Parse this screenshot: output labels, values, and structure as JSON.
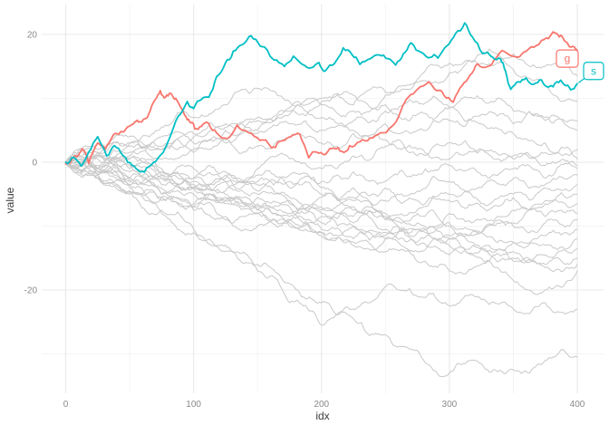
{
  "chart_data": {
    "type": "line",
    "title": "",
    "xlabel": "idx",
    "ylabel": "value",
    "x_ticks": [
      0,
      100,
      200,
      300,
      400
    ],
    "y_ticks": [
      20,
      0,
      -20
    ],
    "x_minor_gridlines": [
      50,
      150,
      250,
      350
    ],
    "y_minor_gridlines": [
      10,
      -10,
      -30
    ],
    "xlim": [
      0,
      400
    ],
    "ylim": [
      -33,
      22
    ],
    "grid": true,
    "legend_position": "none",
    "annotation_style": "direct series labels in rounded boxes at right edge",
    "colors": {
      "series_g": "#F8766D",
      "series_s": "#00BFC4",
      "background_lines": "#C9C9C9",
      "grid_major": "#E8E8E8",
      "grid_minor": "#F4F4F4",
      "tick_text": "#8a8a8a",
      "axis_title_text": "#3d3d3d",
      "panel_background": "#FFFFFF"
    },
    "series": [
      {
        "name": "g",
        "color": "#F8766D",
        "points": [
          [
            0,
            -0.3
          ],
          [
            7,
            1
          ],
          [
            13,
            2.1
          ],
          [
            18,
            -0.2
          ],
          [
            25,
            3
          ],
          [
            31,
            2
          ],
          [
            37,
            4.2
          ],
          [
            43,
            4.8
          ],
          [
            47,
            5.2
          ],
          [
            53,
            6
          ],
          [
            57,
            6.3
          ],
          [
            62,
            6.8
          ],
          [
            66,
            8
          ],
          [
            70,
            9.8
          ],
          [
            74,
            11.2
          ],
          [
            78,
            10.2
          ],
          [
            82,
            10.8
          ],
          [
            86,
            10
          ],
          [
            93,
            7.4
          ],
          [
            97,
            6.3
          ],
          [
            101,
            5.2
          ],
          [
            106,
            5.6
          ],
          [
            112,
            6
          ],
          [
            118,
            4.6
          ],
          [
            126,
            3.7
          ],
          [
            134,
            5.8
          ],
          [
            143,
            4.6
          ],
          [
            152,
            3.4
          ],
          [
            158,
            3
          ],
          [
            164,
            2.3
          ],
          [
            170,
            3.4
          ],
          [
            176,
            4
          ],
          [
            183,
            4.4
          ],
          [
            190,
            0.7
          ],
          [
            196,
            1.6
          ],
          [
            203,
            1.2
          ],
          [
            210,
            2.2
          ],
          [
            216,
            1.7
          ],
          [
            222,
            2.6
          ],
          [
            230,
            3.2
          ],
          [
            238,
            3.8
          ],
          [
            246,
            4.6
          ],
          [
            255,
            5.6
          ],
          [
            262,
            8
          ],
          [
            268,
            10.2
          ],
          [
            275,
            11.4
          ],
          [
            284,
            12.6
          ],
          [
            290,
            11.2
          ],
          [
            296,
            10.4
          ],
          [
            303,
            9.4
          ],
          [
            310,
            12
          ],
          [
            316,
            13.6
          ],
          [
            322,
            15.4
          ],
          [
            330,
            15
          ],
          [
            336,
            16.2
          ],
          [
            343,
            17.3
          ],
          [
            352,
            16.5
          ],
          [
            358,
            17.2
          ],
          [
            366,
            18
          ],
          [
            374,
            19.2
          ],
          [
            381,
            20.4
          ],
          [
            386,
            19.6
          ],
          [
            390,
            19
          ],
          [
            395,
            18
          ],
          [
            400,
            17.5
          ]
        ]
      },
      {
        "name": "s",
        "color": "#00BFC4",
        "points": [
          [
            0,
            0
          ],
          [
            6,
            0.8
          ],
          [
            12,
            -0.6
          ],
          [
            18,
            1.6
          ],
          [
            25,
            4
          ],
          [
            32,
            1
          ],
          [
            38,
            2.6
          ],
          [
            45,
            1
          ],
          [
            52,
            -0.5
          ],
          [
            58,
            -1.5
          ],
          [
            65,
            -0.7
          ],
          [
            72,
            0.6
          ],
          [
            80,
            3.2
          ],
          [
            88,
            7.2
          ],
          [
            95,
            9.5
          ],
          [
            100,
            8.4
          ],
          [
            106,
            9.8
          ],
          [
            112,
            10.2
          ],
          [
            118,
            13.4
          ],
          [
            125,
            15.6
          ],
          [
            131,
            17.4
          ],
          [
            138,
            18.4
          ],
          [
            145,
            19.8
          ],
          [
            152,
            18.2
          ],
          [
            158,
            17.4
          ],
          [
            165,
            16
          ],
          [
            171,
            15
          ],
          [
            178,
            16.6
          ],
          [
            185,
            15.3
          ],
          [
            192,
            14.8
          ],
          [
            198,
            15.6
          ],
          [
            203,
            14.3
          ],
          [
            210,
            15.4
          ],
          [
            217,
            17.9
          ],
          [
            224,
            16.8
          ],
          [
            230,
            15.3
          ],
          [
            238,
            16.2
          ],
          [
            245,
            16.8
          ],
          [
            252,
            16.2
          ],
          [
            258,
            15.2
          ],
          [
            264,
            17
          ],
          [
            270,
            18.7
          ],
          [
            278,
            17.2
          ],
          [
            285,
            16.4
          ],
          [
            291,
            16.3
          ],
          [
            298,
            18.2
          ],
          [
            305,
            20.2
          ],
          [
            312,
            21.8
          ],
          [
            318,
            19.6
          ],
          [
            326,
            17
          ],
          [
            334,
            16.4
          ],
          [
            340,
            16.2
          ],
          [
            344,
            14.2
          ],
          [
            348,
            11.4
          ],
          [
            354,
            12.6
          ],
          [
            360,
            13.2
          ],
          [
            366,
            12.2
          ],
          [
            372,
            12.9
          ],
          [
            378,
            11.8
          ],
          [
            384,
            12.6
          ],
          [
            390,
            12.1
          ],
          [
            395,
            11.3
          ],
          [
            400,
            12.3
          ]
        ]
      }
    ],
    "background_series": {
      "x_start": 0,
      "x_step": 25,
      "color": "#C9C9C9",
      "values": [
        [
          0,
          1.5,
          3,
          2,
          4.5,
          6,
          5,
          7.5,
          9,
          8,
          10.5,
          13,
          15.5,
          17,
          14.5,
          12,
          9.5
        ],
        [
          0,
          -1,
          1,
          2.5,
          1.5,
          3,
          4.5,
          6,
          5,
          6.5,
          8,
          9.5,
          8.5,
          10,
          8,
          6.5,
          5
        ],
        [
          0,
          1,
          2.5,
          4,
          3,
          5,
          6.5,
          8,
          9.5,
          10.5,
          9,
          7.5,
          8.5,
          6,
          4.5,
          3,
          2
        ],
        [
          0,
          -1.5,
          -3,
          -2,
          -4,
          -2.5,
          -1,
          0.5,
          -1,
          1,
          2.5,
          1,
          3,
          2,
          0.5,
          1.5,
          0.5
        ],
        [
          0,
          1,
          -0.5,
          -2,
          -1,
          -3,
          -2,
          -4,
          -3,
          -1.5,
          -3,
          -2,
          -0.5,
          -2,
          -1,
          -2.5,
          -1
        ],
        [
          0,
          -1,
          -2.5,
          -1.5,
          -3.5,
          -2,
          -4.5,
          -3,
          -5,
          -4,
          -6,
          -4.5,
          -3,
          -4,
          -2.5,
          -3.5,
          -2
        ],
        [
          0,
          1.5,
          0.5,
          -1,
          -2.5,
          -1.5,
          -3,
          -2,
          -4,
          -5.5,
          -4,
          -6,
          -5,
          -6.5,
          -5,
          -4,
          -3.5
        ],
        [
          0,
          -2,
          -3.5,
          -5,
          -4,
          -6,
          -7.5,
          -6,
          -8,
          -7,
          -9,
          -7.5,
          -6,
          -7,
          -5.5,
          -6.5,
          -5
        ],
        [
          0,
          -1,
          0.5,
          -1.5,
          -3,
          -4.5,
          -3.5,
          -5.5,
          -7,
          -6,
          -8,
          -9.5,
          -8,
          -9,
          -7.5,
          -6,
          -6.5
        ],
        [
          0,
          1,
          -1,
          -2.5,
          -4,
          -3,
          -5,
          -6.5,
          -5.5,
          -7.5,
          -9,
          -8,
          -10,
          -11,
          -9.5,
          -8.5,
          -8
        ],
        [
          0,
          -2,
          -4,
          -5.5,
          -7,
          -6,
          -8,
          -9.5,
          -11,
          -10,
          -12,
          -11,
          -9.5,
          -11,
          -10,
          -9.5,
          -9
        ],
        [
          0,
          -1.5,
          -0.5,
          -2.5,
          -4,
          -5.5,
          -7,
          -8.5,
          -7.5,
          -9.5,
          -8.5,
          -10.5,
          -12,
          -11,
          -12.5,
          -11.5,
          -10.5
        ],
        [
          0,
          0.5,
          -1.5,
          -3.5,
          -2.5,
          -5,
          -6.5,
          -8,
          -9.5,
          -8.5,
          -10.5,
          -12.5,
          -11.5,
          -13.5,
          -12.5,
          -13,
          -12
        ],
        [
          0,
          -2.5,
          -4.5,
          -6,
          -7.5,
          -9,
          -8,
          -10,
          -11.5,
          -13,
          -12,
          -14,
          -13,
          -15,
          -14,
          -14.5,
          -13.5
        ],
        [
          0,
          -1,
          -3,
          -5,
          -6.5,
          -5.5,
          -7.5,
          -9,
          -10.5,
          -12,
          -11,
          -13,
          -14.5,
          -13.5,
          -15.5,
          -16,
          -15
        ],
        [
          0,
          -2,
          -3.5,
          -5.5,
          -7,
          -8.5,
          -10,
          -9,
          -11,
          -12.5,
          -14,
          -15.5,
          -17,
          -16,
          -18.5,
          -20,
          -17
        ],
        [
          0,
          -2.5,
          -5,
          -8,
          -11,
          -14,
          -17,
          -22,
          -25.5,
          -23,
          -19.5,
          -21,
          -22.5,
          -21.5,
          -23,
          -22,
          -23
        ],
        [
          0,
          -2,
          -4.5,
          -7.5,
          -10.5,
          -13,
          -16,
          -19,
          -22,
          -24.5,
          -27,
          -29.5,
          -33,
          -31.5,
          -32.5,
          -31,
          -30.5
        ],
        [
          0,
          2,
          4,
          5.5,
          7,
          9,
          11.5,
          9.5,
          7,
          5,
          3.5,
          2,
          0.5,
          2,
          1,
          -0.5,
          -0.5
        ],
        [
          0,
          1,
          3,
          2,
          4,
          5.5,
          7,
          8.5,
          10,
          9,
          11,
          12.5,
          14,
          15.5,
          17,
          15,
          13.5
        ],
        [
          0,
          -0.5,
          1.5,
          0.5,
          2,
          3.5,
          2.5,
          4,
          3,
          4.5,
          6,
          5,
          6.5,
          7.5,
          6,
          7,
          6.5
        ],
        [
          0,
          -1.5,
          -2.5,
          -4,
          -5,
          -6.5,
          -5.5,
          -7,
          -8.5,
          -10,
          -11.5,
          -10.5,
          -12,
          -13.5,
          -15,
          -16.5,
          -16
        ]
      ]
    }
  }
}
